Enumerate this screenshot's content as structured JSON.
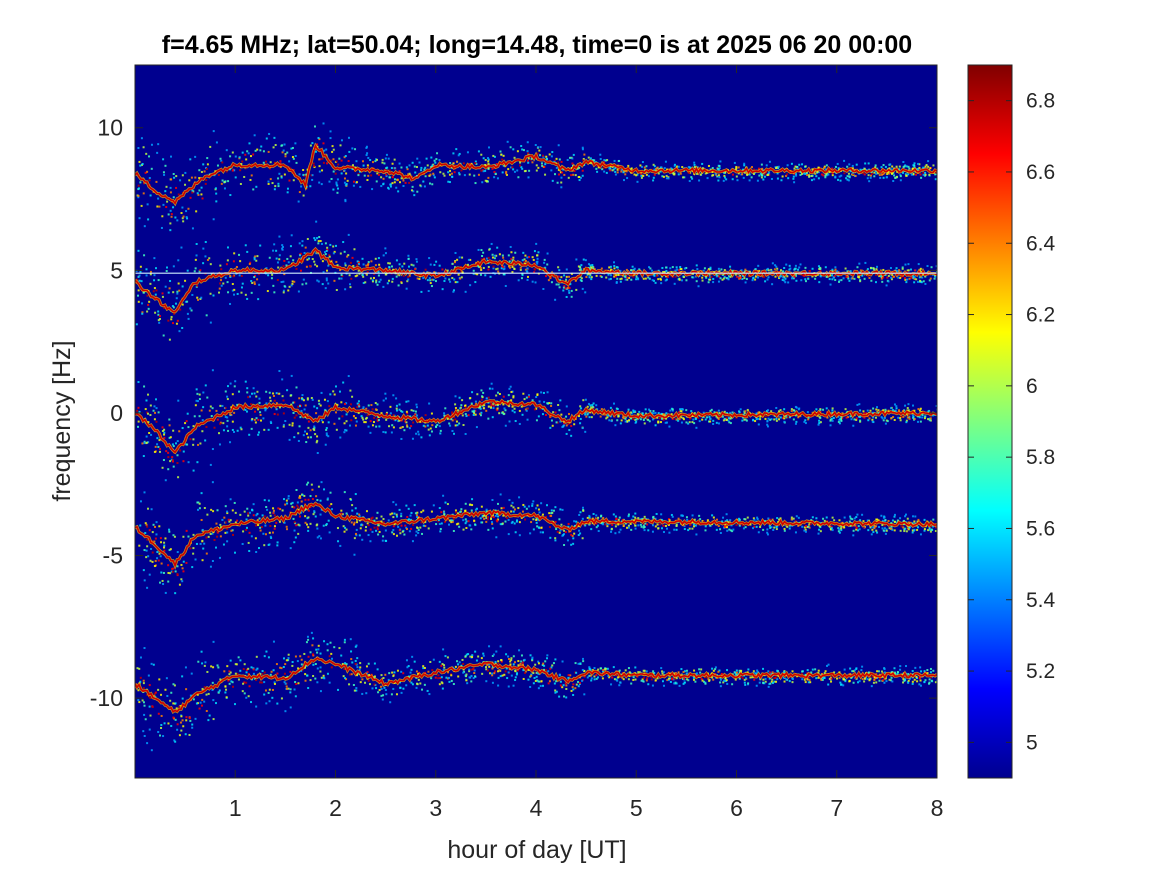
{
  "chart_data": {
    "type": "heatmap",
    "title": "f=4.65 MHz;  lat=50.04; long=14.48, time=0 is at 2025 06 20 00:00",
    "xlabel": "hour of day [UT]",
    "ylabel": "frequency [Hz]",
    "xlim": [
      0,
      8
    ],
    "ylim": [
      -12.8,
      12.2
    ],
    "x_ticks": [
      "1",
      "2",
      "3",
      "4",
      "5",
      "6",
      "7",
      "8"
    ],
    "y_ticks": [
      "-10",
      "-5",
      "0",
      "5",
      "10"
    ],
    "x_tick_values": [
      1,
      2,
      3,
      4,
      5,
      6,
      7,
      8
    ],
    "y_tick_values": [
      -10,
      -5,
      0,
      5,
      10
    ],
    "colormap": "jet",
    "background_color": "#00008f",
    "colorbar": {
      "range": [
        4.9,
        6.9
      ],
      "ticks": [
        "5",
        "5.2",
        "5.4",
        "5.6",
        "5.8",
        "6",
        "6.2",
        "6.4",
        "6.6",
        "6.8"
      ],
      "tick_values": [
        5,
        5.2,
        5.4,
        5.6,
        5.8,
        6,
        6.2,
        6.4,
        6.6,
        6.8
      ]
    },
    "series": [
      {
        "baseline": 8.4,
        "trace": [
          [
            0,
            8.4
          ],
          [
            0.2,
            7.8
          ],
          [
            0.4,
            7.4
          ],
          [
            0.7,
            8.3
          ],
          [
            1.0,
            8.7
          ],
          [
            1.5,
            8.7
          ],
          [
            1.7,
            8.0
          ],
          [
            1.8,
            9.4
          ],
          [
            2.0,
            8.6
          ],
          [
            2.5,
            8.5
          ],
          [
            2.8,
            8.2
          ],
          [
            3.0,
            8.7
          ],
          [
            3.5,
            8.6
          ],
          [
            4.0,
            9.0
          ],
          [
            4.3,
            8.5
          ],
          [
            4.5,
            8.8
          ],
          [
            5.0,
            8.5
          ],
          [
            6.0,
            8.5
          ],
          [
            8.0,
            8.5
          ]
        ]
      },
      {
        "baseline": 4.9,
        "trace": [
          [
            0,
            4.6
          ],
          [
            0.2,
            4.0
          ],
          [
            0.4,
            3.5
          ],
          [
            0.6,
            4.6
          ],
          [
            1.0,
            5.0
          ],
          [
            1.5,
            5.0
          ],
          [
            1.8,
            5.7
          ],
          [
            2.0,
            5.1
          ],
          [
            2.5,
            5.0
          ],
          [
            3.0,
            4.8
          ],
          [
            3.5,
            5.3
          ],
          [
            4.0,
            5.2
          ],
          [
            4.3,
            4.5
          ],
          [
            4.5,
            5.0
          ],
          [
            5.0,
            4.9
          ],
          [
            8.0,
            4.9
          ]
        ]
      },
      {
        "baseline": 0,
        "trace": [
          [
            0,
            0
          ],
          [
            0.2,
            -0.6
          ],
          [
            0.4,
            -1.4
          ],
          [
            0.6,
            -0.5
          ],
          [
            1.0,
            0.2
          ],
          [
            1.5,
            0.3
          ],
          [
            1.8,
            -0.3
          ],
          [
            2.0,
            0.2
          ],
          [
            2.5,
            -0.1
          ],
          [
            3.0,
            -0.3
          ],
          [
            3.5,
            0.4
          ],
          [
            4.0,
            0.3
          ],
          [
            4.3,
            -0.3
          ],
          [
            4.5,
            0.1
          ],
          [
            5.0,
            -0.1
          ],
          [
            8.0,
            0.0
          ]
        ]
      },
      {
        "baseline": -3.9,
        "trace": [
          [
            0,
            -4.0
          ],
          [
            0.2,
            -4.6
          ],
          [
            0.4,
            -5.3
          ],
          [
            0.6,
            -4.3
          ],
          [
            1.0,
            -3.9
          ],
          [
            1.5,
            -3.7
          ],
          [
            1.7,
            -3.3
          ],
          [
            1.8,
            -3.2
          ],
          [
            2.0,
            -3.6
          ],
          [
            2.5,
            -3.9
          ],
          [
            3.0,
            -3.7
          ],
          [
            3.5,
            -3.5
          ],
          [
            4.0,
            -3.6
          ],
          [
            4.3,
            -4.1
          ],
          [
            4.5,
            -3.8
          ],
          [
            5.0,
            -3.8
          ],
          [
            8.0,
            -3.9
          ]
        ]
      },
      {
        "baseline": -9.3,
        "trace": [
          [
            0,
            -9.5
          ],
          [
            0.2,
            -10.0
          ],
          [
            0.4,
            -10.5
          ],
          [
            0.6,
            -9.9
          ],
          [
            1.0,
            -9.2
          ],
          [
            1.5,
            -9.3
          ],
          [
            1.8,
            -8.6
          ],
          [
            2.0,
            -8.8
          ],
          [
            2.5,
            -9.5
          ],
          [
            3.0,
            -9.1
          ],
          [
            3.5,
            -8.8
          ],
          [
            4.0,
            -9.0
          ],
          [
            4.3,
            -9.4
          ],
          [
            4.5,
            -9.1
          ],
          [
            5.0,
            -9.2
          ],
          [
            8.0,
            -9.2
          ]
        ]
      }
    ]
  }
}
